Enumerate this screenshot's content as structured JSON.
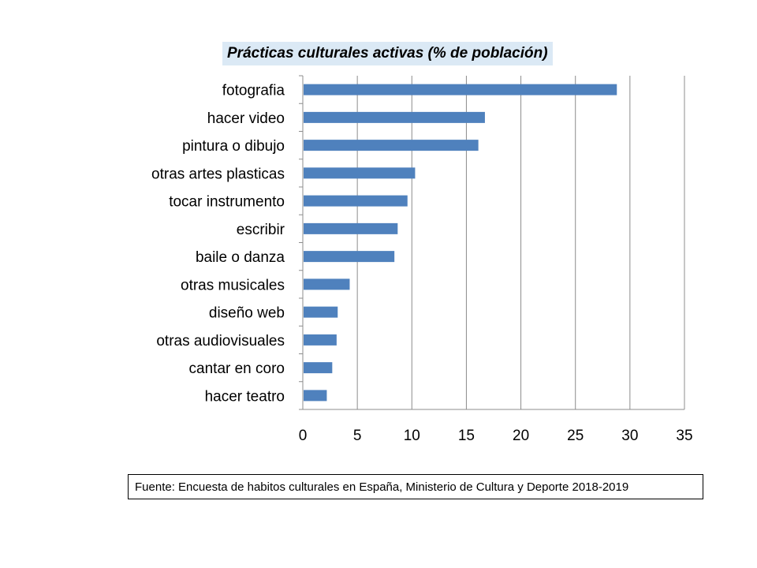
{
  "chart_data": {
    "type": "bar",
    "orientation": "horizontal",
    "title": "Prácticas culturales activas (% de población)",
    "categories": [
      "fotografia",
      "hacer video",
      "pintura o dibujo",
      "otras artes plasticas",
      "tocar instrumento",
      "escribir",
      "baile o danza",
      "otras musicales",
      "diseño web",
      "otras audiovisuales",
      "cantar en coro",
      "hacer teatro"
    ],
    "values": [
      28.8,
      16.7,
      16.1,
      10.3,
      9.6,
      8.7,
      8.4,
      4.3,
      3.2,
      3.1,
      2.7,
      2.2
    ],
    "xlim": [
      0,
      35
    ],
    "xticks": [
      "0",
      "5",
      "10",
      "15",
      "20",
      "25",
      "30",
      "35"
    ],
    "grid": "vertical",
    "bar_color": "#4f81bd"
  },
  "source_note": "Fuente: Encuesta de habitos culturales en España, Ministerio de Cultura y Deporte 2018-2019"
}
